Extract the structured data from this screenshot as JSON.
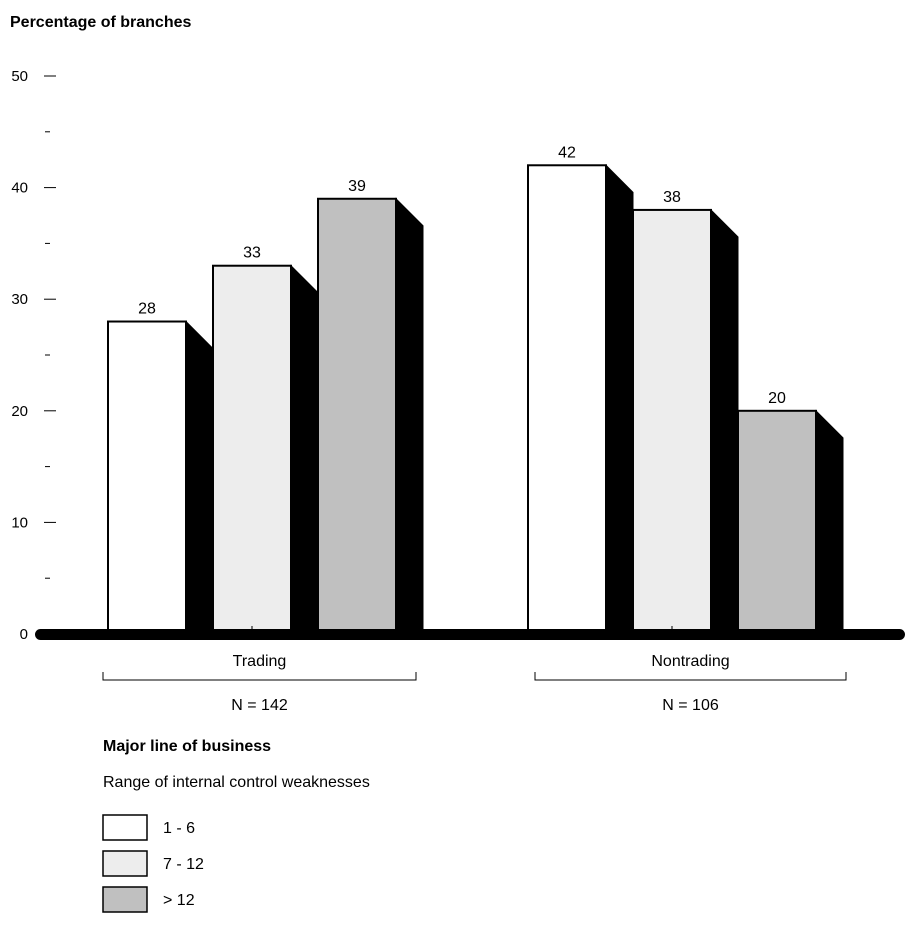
{
  "chart_data": {
    "type": "bar",
    "ylabel": "Percentage of branches",
    "xlabel": "Major line of business",
    "ylim": [
      0,
      50
    ],
    "y_ticks": [
      0,
      10,
      20,
      30,
      40,
      50
    ],
    "y_minor_ticks": [
      5,
      15,
      25,
      35,
      45
    ],
    "grid": false,
    "categories": [
      "Trading",
      "Nontrading"
    ],
    "category_counts": [
      "N = 142",
      "N = 106"
    ],
    "legend_title": "Range of internal control weaknesses",
    "legend_position": "bottom-left",
    "series": [
      {
        "name": "1 - 6",
        "values": [
          28,
          42
        ],
        "color": "#ffffff"
      },
      {
        "name": "7 - 12",
        "values": [
          33,
          38
        ],
        "color": "#ededed"
      },
      {
        "name": "> 12",
        "values": [
          39,
          20
        ],
        "color": "#c0c0c0"
      }
    ],
    "shadow_color": "#000000"
  }
}
